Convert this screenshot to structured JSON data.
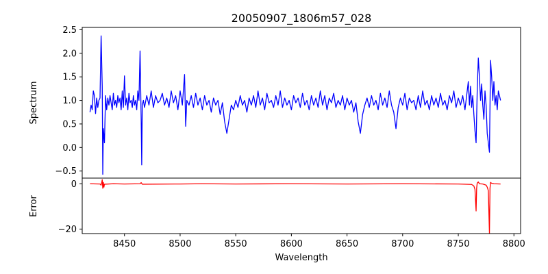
{
  "chart_data": [
    {
      "type": "line",
      "title": "20050907_1806m57_028",
      "xlabel": "",
      "ylabel": "Spectrum",
      "xlim": [
        8412,
        8806
      ],
      "ylim": [
        -0.65,
        2.55
      ],
      "x_ticks": [
        8450,
        8500,
        8550,
        8600,
        8650,
        8700,
        8750,
        8800
      ],
      "y_ticks": [
        -0.5,
        0.0,
        0.5,
        1.0,
        1.5,
        2.0,
        2.5
      ],
      "y_tick_labels": [
        "−0.5",
        "0.0",
        "0.5",
        "1.0",
        "1.5",
        "2.0",
        "2.5"
      ],
      "grid": false,
      "series": [
        {
          "color": "#0000ff",
          "points": [
            [
              8419,
              0.75
            ],
            [
              8420,
              0.9
            ],
            [
              8421,
              0.8
            ],
            [
              8422,
              1.2
            ],
            [
              8423,
              1.1
            ],
            [
              8424,
              0.72
            ],
            [
              8425,
              1.05
            ],
            [
              8426,
              0.85
            ],
            [
              8427,
              1.0
            ],
            [
              8428,
              1.05
            ],
            [
              8429,
              2.37
            ],
            [
              8430,
              1.3
            ],
            [
              8430.5,
              -0.57
            ],
            [
              8431,
              0.4
            ],
            [
              8432,
              0.1
            ],
            [
              8433,
              1.1
            ],
            [
              8434,
              0.8
            ],
            [
              8435,
              1.05
            ],
            [
              8436,
              0.9
            ],
            [
              8437,
              1.1
            ],
            [
              8438,
              0.95
            ],
            [
              8439,
              0.8
            ],
            [
              8440,
              1.15
            ],
            [
              8441,
              0.9
            ],
            [
              8442,
              1.0
            ],
            [
              8443,
              0.85
            ],
            [
              8444,
              1.1
            ],
            [
              8445,
              0.95
            ],
            [
              8446,
              1.05
            ],
            [
              8447,
              0.8
            ],
            [
              8448,
              1.2
            ],
            [
              8449,
              0.85
            ],
            [
              8450,
              1.52
            ],
            [
              8451,
              0.9
            ],
            [
              8452,
              1.05
            ],
            [
              8453,
              0.8
            ],
            [
              8454,
              1.15
            ],
            [
              8455,
              0.95
            ],
            [
              8456,
              1.0
            ],
            [
              8457,
              0.85
            ],
            [
              8458,
              1.1
            ],
            [
              8459,
              0.9
            ],
            [
              8460,
              1.0
            ],
            [
              8461,
              0.8
            ],
            [
              8462,
              1.2
            ],
            [
              8463,
              1.0
            ],
            [
              8464,
              2.05
            ],
            [
              8465,
              0.6
            ],
            [
              8465.5,
              -0.37
            ],
            [
              8466,
              0.9
            ],
            [
              8467,
              1.0
            ],
            [
              8468,
              0.85
            ],
            [
              8470,
              1.1
            ],
            [
              8472,
              0.9
            ],
            [
              8474,
              1.2
            ],
            [
              8476,
              0.85
            ],
            [
              8478,
              1.1
            ],
            [
              8480,
              0.95
            ],
            [
              8482,
              1.0
            ],
            [
              8484,
              1.15
            ],
            [
              8486,
              0.9
            ],
            [
              8488,
              1.05
            ],
            [
              8490,
              0.85
            ],
            [
              8492,
              1.2
            ],
            [
              8494,
              0.95
            ],
            [
              8496,
              1.1
            ],
            [
              8498,
              0.8
            ],
            [
              8500,
              1.2
            ],
            [
              8502,
              0.9
            ],
            [
              8504,
              1.55
            ],
            [
              8505,
              0.45
            ],
            [
              8506,
              1.0
            ],
            [
              8508,
              0.9
            ],
            [
              8510,
              1.1
            ],
            [
              8512,
              0.85
            ],
            [
              8514,
              1.15
            ],
            [
              8516,
              0.9
            ],
            [
              8518,
              1.05
            ],
            [
              8520,
              0.8
            ],
            [
              8522,
              1.1
            ],
            [
              8524,
              0.9
            ],
            [
              8526,
              1.0
            ],
            [
              8528,
              0.75
            ],
            [
              8530,
              1.05
            ],
            [
              8532,
              0.9
            ],
            [
              8534,
              1.0
            ],
            [
              8536,
              0.7
            ],
            [
              8538,
              0.95
            ],
            [
              8540,
              0.55
            ],
            [
              8542,
              0.3
            ],
            [
              8544,
              0.6
            ],
            [
              8546,
              0.9
            ],
            [
              8548,
              0.8
            ],
            [
              8550,
              1.0
            ],
            [
              8552,
              0.85
            ],
            [
              8554,
              1.1
            ],
            [
              8556,
              0.9
            ],
            [
              8558,
              1.0
            ],
            [
              8560,
              0.75
            ],
            [
              8562,
              1.05
            ],
            [
              8564,
              0.9
            ],
            [
              8566,
              1.1
            ],
            [
              8568,
              0.85
            ],
            [
              8570,
              1.2
            ],
            [
              8572,
              0.9
            ],
            [
              8574,
              1.05
            ],
            [
              8576,
              0.8
            ],
            [
              8578,
              1.15
            ],
            [
              8580,
              0.95
            ],
            [
              8582,
              1.0
            ],
            [
              8584,
              0.85
            ],
            [
              8586,
              1.1
            ],
            [
              8588,
              0.9
            ],
            [
              8590,
              1.2
            ],
            [
              8592,
              0.85
            ],
            [
              8594,
              1.05
            ],
            [
              8596,
              0.9
            ],
            [
              8598,
              1.0
            ],
            [
              8600,
              0.8
            ],
            [
              8602,
              1.1
            ],
            [
              8604,
              0.95
            ],
            [
              8606,
              1.05
            ],
            [
              8608,
              0.85
            ],
            [
              8610,
              1.15
            ],
            [
              8612,
              0.9
            ],
            [
              8614,
              1.0
            ],
            [
              8616,
              0.8
            ],
            [
              8618,
              1.1
            ],
            [
              8620,
              0.9
            ],
            [
              8622,
              1.05
            ],
            [
              8624,
              0.85
            ],
            [
              8626,
              1.2
            ],
            [
              8628,
              0.9
            ],
            [
              8630,
              1.1
            ],
            [
              8632,
              0.8
            ],
            [
              8634,
              1.05
            ],
            [
              8636,
              0.95
            ],
            [
              8638,
              1.15
            ],
            [
              8640,
              0.85
            ],
            [
              8642,
              1.0
            ],
            [
              8644,
              0.9
            ],
            [
              8646,
              1.1
            ],
            [
              8648,
              0.8
            ],
            [
              8650,
              1.05
            ],
            [
              8652,
              0.9
            ],
            [
              8654,
              1.0
            ],
            [
              8656,
              0.75
            ],
            [
              8658,
              0.95
            ],
            [
              8660,
              0.55
            ],
            [
              8662,
              0.3
            ],
            [
              8664,
              0.7
            ],
            [
              8666,
              0.9
            ],
            [
              8668,
              1.05
            ],
            [
              8670,
              0.85
            ],
            [
              8672,
              1.1
            ],
            [
              8674,
              0.9
            ],
            [
              8676,
              1.0
            ],
            [
              8678,
              0.8
            ],
            [
              8680,
              1.15
            ],
            [
              8682,
              0.9
            ],
            [
              8684,
              1.05
            ],
            [
              8686,
              0.85
            ],
            [
              8688,
              1.2
            ],
            [
              8690,
              0.9
            ],
            [
              8692,
              0.75
            ],
            [
              8694,
              0.4
            ],
            [
              8696,
              0.85
            ],
            [
              8698,
              1.05
            ],
            [
              8700,
              0.9
            ],
            [
              8702,
              1.15
            ],
            [
              8704,
              0.8
            ],
            [
              8706,
              1.05
            ],
            [
              8708,
              0.95
            ],
            [
              8710,
              1.0
            ],
            [
              8712,
              0.8
            ],
            [
              8714,
              1.1
            ],
            [
              8716,
              0.85
            ],
            [
              8718,
              1.2
            ],
            [
              8720,
              0.9
            ],
            [
              8722,
              1.0
            ],
            [
              8724,
              0.8
            ],
            [
              8726,
              1.1
            ],
            [
              8728,
              0.9
            ],
            [
              8730,
              1.05
            ],
            [
              8732,
              0.85
            ],
            [
              8734,
              1.15
            ],
            [
              8736,
              0.9
            ],
            [
              8738,
              1.0
            ],
            [
              8740,
              0.8
            ],
            [
              8742,
              1.1
            ],
            [
              8744,
              0.95
            ],
            [
              8746,
              1.2
            ],
            [
              8748,
              0.85
            ],
            [
              8750,
              1.05
            ],
            [
              8752,
              0.9
            ],
            [
              8754,
              1.1
            ],
            [
              8756,
              0.8
            ],
            [
              8758,
              1.2
            ],
            [
              8759,
              1.4
            ],
            [
              8760,
              0.9
            ],
            [
              8761,
              1.3
            ],
            [
              8762,
              0.85
            ],
            [
              8763,
              1.1
            ],
            [
              8764,
              0.7
            ],
            [
              8765,
              0.35
            ],
            [
              8766,
              0.1
            ],
            [
              8767,
              1.2
            ],
            [
              8768,
              1.9
            ],
            [
              8769,
              1.5
            ],
            [
              8770,
              1.0
            ],
            [
              8771,
              1.35
            ],
            [
              8772,
              0.9
            ],
            [
              8773,
              0.6
            ],
            [
              8774,
              1.2
            ],
            [
              8775,
              0.9
            ],
            [
              8776,
              0.3
            ],
            [
              8777,
              0.1
            ],
            [
              8778,
              -0.1
            ],
            [
              8779,
              1.85
            ],
            [
              8780,
              1.5
            ],
            [
              8781,
              1.0
            ],
            [
              8782,
              1.4
            ],
            [
              8783,
              0.9
            ],
            [
              8784,
              1.1
            ],
            [
              8785,
              0.8
            ],
            [
              8786,
              1.2
            ],
            [
              8787,
              1.1
            ],
            [
              8788,
              1.0
            ]
          ]
        }
      ]
    },
    {
      "type": "line",
      "title": "",
      "xlabel": "Wavelength",
      "ylabel": "Error",
      "xlim": [
        8412,
        8806
      ],
      "ylim": [
        -22,
        2.5
      ],
      "x_ticks": [
        8450,
        8500,
        8550,
        8600,
        8650,
        8700,
        8750,
        8800
      ],
      "x_tick_labels": [
        "8450",
        "8500",
        "8550",
        "8600",
        "8650",
        "8700",
        "8750",
        "8800"
      ],
      "y_ticks": [
        0,
        -20
      ],
      "y_tick_labels": [
        "0",
        "−20"
      ],
      "grid": false,
      "series": [
        {
          "color": "#ff0000",
          "points": [
            [
              8419,
              0.0
            ],
            [
              8428,
              -0.1
            ],
            [
              8429,
              -0.6
            ],
            [
              8429.5,
              0.4
            ],
            [
              8430,
              1.8
            ],
            [
              8430.5,
              -2.0
            ],
            [
              8431,
              0.6
            ],
            [
              8431.5,
              -1.5
            ],
            [
              8432,
              -0.2
            ],
            [
              8440,
              0.0
            ],
            [
              8450,
              -0.1
            ],
            [
              8464,
              0.0
            ],
            [
              8465,
              0.5
            ],
            [
              8466,
              -0.2
            ],
            [
              8500,
              -0.1
            ],
            [
              8520,
              0.0
            ],
            [
              8550,
              -0.1
            ],
            [
              8600,
              0.0
            ],
            [
              8650,
              -0.1
            ],
            [
              8700,
              0.0
            ],
            [
              8750,
              -0.1
            ],
            [
              8762,
              -0.3
            ],
            [
              8764,
              -1.0
            ],
            [
              8765,
              -2.5
            ],
            [
              8766,
              -12.0
            ],
            [
              8766.5,
              -2.0
            ],
            [
              8767,
              0.3
            ],
            [
              8768,
              0.8
            ],
            [
              8769,
              0.0
            ],
            [
              8772,
              -0.1
            ],
            [
              8775,
              -0.6
            ],
            [
              8776,
              -1.5
            ],
            [
              8777,
              -3.0
            ],
            [
              8778,
              -22.0
            ],
            [
              8778.5,
              -2.0
            ],
            [
              8779,
              0.6
            ],
            [
              8780,
              0.2
            ],
            [
              8782,
              0.0
            ],
            [
              8788,
              -0.1
            ]
          ]
        }
      ]
    }
  ]
}
